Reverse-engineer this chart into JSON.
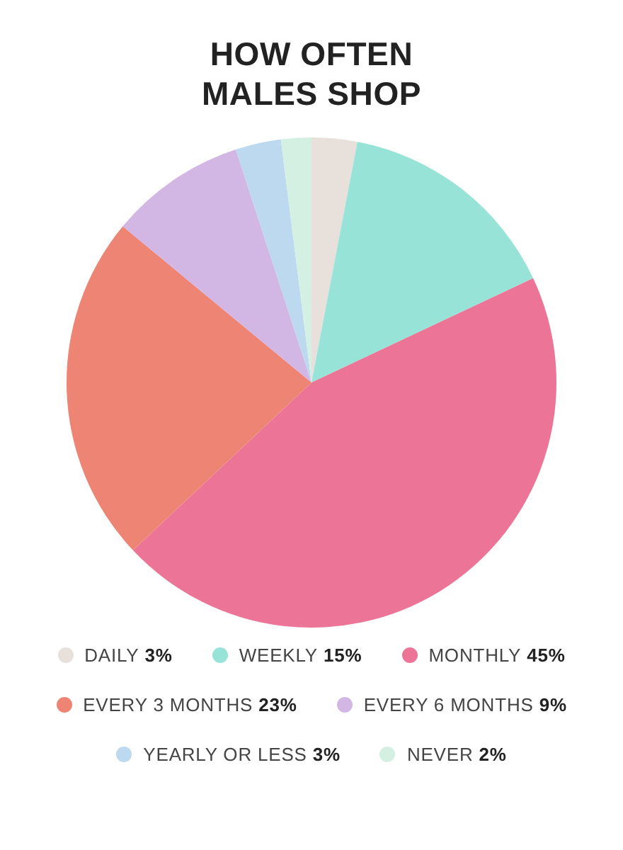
{
  "chart_data": {
    "type": "pie",
    "title": "HOW OFTEN MALES SHOP",
    "categories": [
      "DAILY",
      "WEEKLY",
      "MONTHLY",
      "EVERY 3 MONTHS",
      "EVERY 6 MONTHS",
      "YEARLY OR LESS",
      "NEVER"
    ],
    "values": [
      3,
      15,
      45,
      23,
      9,
      3,
      2
    ],
    "value_labels": [
      "3%",
      "15%",
      "45%",
      "23%",
      "9%",
      "3%",
      "2%"
    ],
    "colors": [
      "#e8e0da",
      "#98e3d8",
      "#ec7597",
      "#ee8574",
      "#d2b7e5",
      "#bcd9f0",
      "#d4f0e3"
    ],
    "legend": "bottom"
  }
}
